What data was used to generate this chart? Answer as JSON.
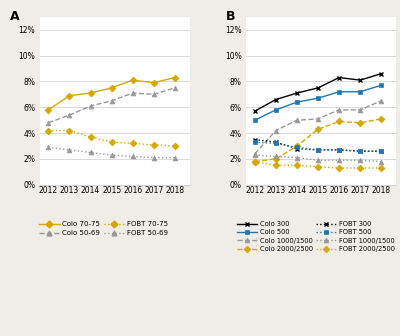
{
  "years": [
    2012,
    2013,
    2014,
    2015,
    2016,
    2017,
    2018
  ],
  "panel_A": {
    "colo_70_75": [
      0.058,
      0.069,
      0.071,
      0.075,
      0.081,
      0.079,
      0.083
    ],
    "colo_50_69": [
      0.048,
      0.054,
      0.061,
      0.065,
      0.071,
      0.07,
      0.075
    ],
    "fobt_70_75": [
      0.042,
      0.042,
      0.037,
      0.033,
      0.032,
      0.031,
      0.03
    ],
    "fobt_50_69": [
      0.029,
      0.027,
      0.025,
      0.023,
      0.022,
      0.021,
      0.021
    ]
  },
  "panel_B": {
    "colo_300": [
      0.057,
      0.066,
      0.071,
      0.075,
      0.083,
      0.081,
      0.086
    ],
    "colo_500": [
      0.05,
      0.058,
      0.064,
      0.067,
      0.072,
      0.072,
      0.077
    ],
    "colo_1000_1500": [
      0.024,
      0.042,
      0.05,
      0.051,
      0.058,
      0.058,
      0.065
    ],
    "colo_2000_2500": [
      0.018,
      0.02,
      0.03,
      0.043,
      0.049,
      0.048,
      0.051
    ],
    "fobt_300": [
      0.035,
      0.033,
      0.028,
      0.027,
      0.027,
      0.026,
      0.026
    ],
    "fobt_500": [
      0.033,
      0.032,
      0.029,
      0.027,
      0.027,
      0.026,
      0.026
    ],
    "fobt_1000_1500": [
      0.023,
      0.022,
      0.021,
      0.019,
      0.019,
      0.019,
      0.018
    ],
    "fobt_2000_2500": [
      0.018,
      0.015,
      0.015,
      0.014,
      0.013,
      0.013,
      0.013
    ]
  },
  "colors": {
    "yellow": "#D4A800",
    "gray": "#999999",
    "blue": "#1F78B4",
    "black": "#000000"
  },
  "bg_color": "#f0ede8"
}
